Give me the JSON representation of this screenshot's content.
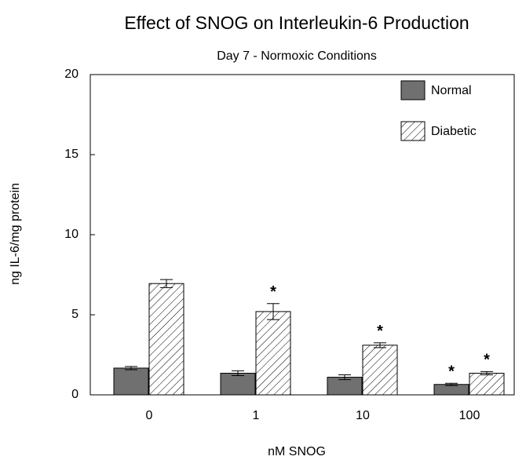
{
  "chart_data": {
    "type": "bar",
    "title": "Effect of SNOG on Interleukin-6 Production",
    "subtitle": "Day 7 - Normoxic Conditions",
    "x_label": "nM SNOG",
    "y_label": "ng IL-6/mg protein",
    "categories": [
      "0",
      "1",
      "10",
      "100"
    ],
    "series": [
      {
        "name": "Normal",
        "color": "#707070",
        "pattern": "solid",
        "values": [
          1.67,
          1.35,
          1.1,
          0.65
        ],
        "errors": [
          0.1,
          0.15,
          0.15,
          0.07
        ],
        "annotations": [
          null,
          null,
          null,
          "*"
        ]
      },
      {
        "name": "Diabetic",
        "color": "#ffffff",
        "pattern": "hatch",
        "values": [
          6.95,
          5.2,
          3.1,
          1.35
        ],
        "errors": [
          0.25,
          0.5,
          0.15,
          0.1
        ],
        "annotations": [
          null,
          "*",
          "*",
          "*"
        ]
      }
    ],
    "ylim": [
      0,
      20
    ],
    "yticks": [
      0,
      5,
      10,
      15,
      20
    ],
    "legend": "upper right"
  }
}
